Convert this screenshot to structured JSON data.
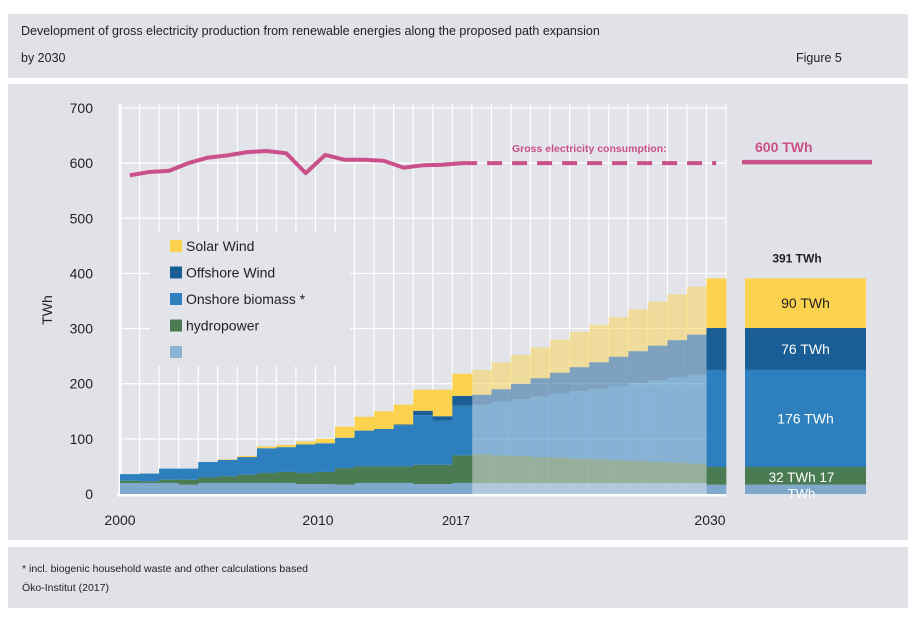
{
  "header": {
    "title_line1": "Development of gross electricity production from renewable energies along the proposed path expansion",
    "title_line2": "by 2030",
    "figure_label": "Figure 5"
  },
  "footer": {
    "note": "* incl. biogenic household waste and other calculations based",
    "source": "Öko-Institut (2017)"
  },
  "chart_data": {
    "type": "bar",
    "stacked": true,
    "title": "Development of gross electricity production from renewable energies along the proposed path expansion by 2030",
    "ylabel": "TWh",
    "xlabel": "",
    "ylim": [
      0,
      700
    ],
    "yticks": [
      "0",
      "100",
      "200",
      "300",
      "400",
      "500",
      "600",
      "700"
    ],
    "xtick_labels": [
      "2000",
      "2010",
      "2017",
      "2030"
    ],
    "grid": true,
    "legend_position": "upper-left",
    "projection_from": 2018,
    "categories": [
      2000,
      2001,
      2002,
      2003,
      2004,
      2005,
      2006,
      2007,
      2008,
      2009,
      2010,
      2011,
      2012,
      2013,
      2014,
      2015,
      2016,
      2017,
      2018,
      2019,
      2020,
      2021,
      2022,
      2023,
      2024,
      2025,
      2026,
      2027,
      2028,
      2029,
      2030
    ],
    "series": [
      {
        "name": "",
        "color": "#7fa9cc",
        "values": [
          20,
          20,
          20,
          17,
          20,
          20,
          20,
          20,
          20,
          18,
          18,
          17,
          20,
          20,
          20,
          18,
          18,
          20,
          20,
          20,
          20,
          20,
          20,
          20,
          20,
          20,
          20,
          20,
          20,
          20,
          17
        ]
      },
      {
        "name": "hydropower",
        "color": "#4b7b52",
        "values": [
          4,
          3,
          6,
          9,
          10,
          12,
          15,
          18,
          20,
          20,
          22,
          30,
          30,
          30,
          30,
          35,
          35,
          50,
          52,
          50,
          49,
          47,
          46,
          44,
          43,
          41,
          40,
          38,
          37,
          35,
          32
        ]
      },
      {
        "name": "Onshore biomass *",
        "color": "#2d80bd",
        "values": [
          12,
          14,
          20,
          20,
          28,
          30,
          32,
          45,
          45,
          52,
          52,
          55,
          65,
          68,
          75,
          90,
          80,
          90,
          90,
          97,
          103,
          110,
          116,
          123,
          128,
          135,
          141,
          148,
          154,
          161,
          176
        ]
      },
      {
        "name": "Offshore Wind",
        "color": "#195e96",
        "values": [
          0,
          0,
          0,
          0,
          0,
          0,
          0,
          0,
          0,
          0,
          0,
          0,
          0,
          0,
          1,
          8,
          8,
          18,
          18,
          23,
          28,
          33,
          38,
          43,
          48,
          53,
          58,
          63,
          68,
          73,
          76
        ]
      },
      {
        "name": "Solar Wind",
        "color": "#fcd24e",
        "values": [
          0,
          0,
          0,
          0,
          0,
          1,
          2,
          3,
          4,
          5,
          8,
          20,
          25,
          32,
          36,
          38,
          48,
          40,
          45,
          49,
          52,
          56,
          60,
          64,
          68,
          72,
          76,
          80,
          83,
          87,
          90
        ]
      }
    ],
    "consumption": {
      "label": "Gross electricity consumption:",
      "color": "#c9508a",
      "values": [
        578,
        584,
        586,
        600,
        610,
        614,
        620,
        622,
        618,
        582,
        615,
        606,
        606,
        604,
        592,
        596,
        597,
        600,
        600,
        600,
        600,
        600,
        600,
        600,
        600,
        600,
        600,
        600,
        600,
        600,
        600
      ],
      "target_label": "600 TWh",
      "target_value": 600
    },
    "summary_2030": {
      "total_label": "391 TWh",
      "segments": [
        {
          "label": "90 TWh",
          "value": 90,
          "color": "#fcd24e"
        },
        {
          "label": "76 TWh",
          "value": 76,
          "color": "#195e96"
        },
        {
          "label": "176 TWh",
          "value": 176,
          "color": "#2d80bd"
        },
        {
          "label": "32 TWh 17",
          "value": 32,
          "color": "#4b7b52"
        },
        {
          "label": "TWh",
          "value": 17,
          "color": "#7fa9cc"
        }
      ]
    }
  }
}
